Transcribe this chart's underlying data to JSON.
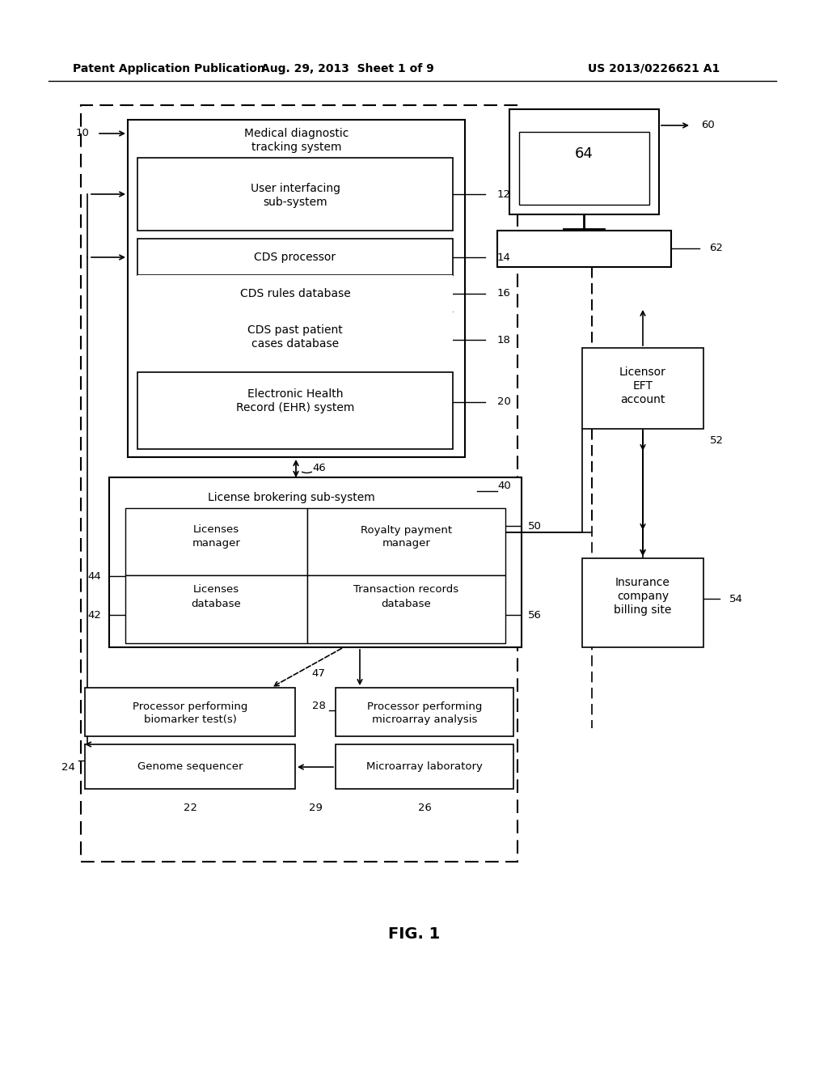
{
  "header_left": "Patent Application Publication",
  "header_mid": "Aug. 29, 2013  Sheet 1 of 9",
  "header_right": "US 2013/0226621 A1",
  "fig_label": "FIG. 1",
  "bg_color": "#ffffff",
  "line_color": "#000000",
  "box_fill": "#ffffff"
}
